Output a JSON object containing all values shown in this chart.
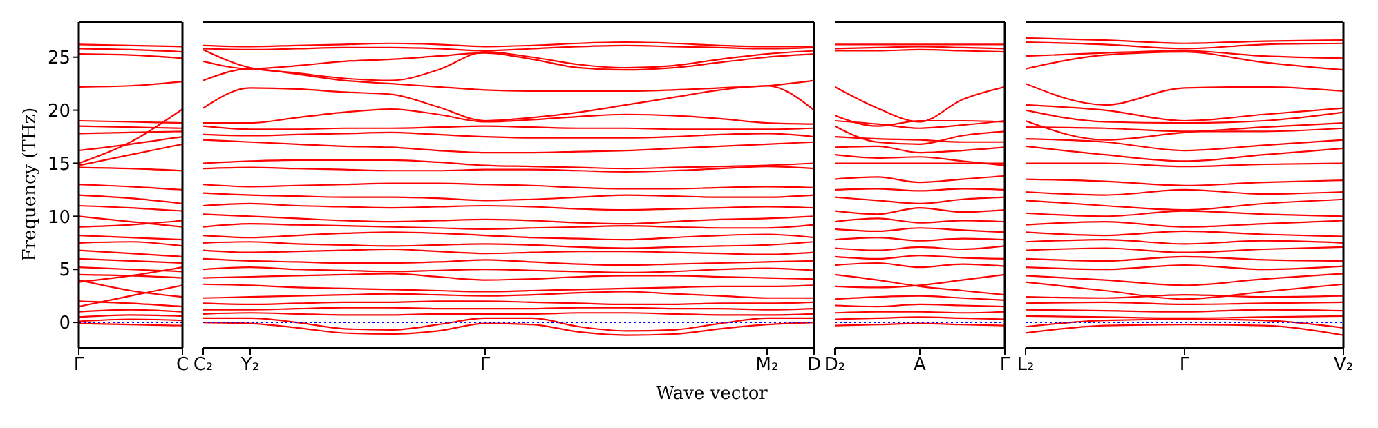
{
  "chart_data": [
    {
      "type": "line",
      "ylabel": "Frequency (THz)",
      "categories": [
        "Γ",
        null,
        "C"
      ],
      "ylim": [
        -2.4,
        28.3
      ],
      "yticks": [
        0,
        5,
        10,
        15,
        20,
        25
      ],
      "marker": "none",
      "line_style": "solid",
      "ref_lines": [
        {
          "axis": "y",
          "value": 0,
          "color": "#0000ff",
          "line_style": "dotted"
        }
      ],
      "series": [
        {
          "color": "#ff0000",
          "values": [
            26.2,
            26.1,
            26.0
          ]
        },
        {
          "color": "#ff0000",
          "values": [
            25.8,
            25.7,
            25.5
          ]
        },
        {
          "color": "#ff0000",
          "values": [
            25.3,
            25.2,
            24.9
          ]
        },
        {
          "color": "#ff0000",
          "values": [
            22.2,
            22.3,
            22.7
          ]
        },
        {
          "color": "#ff0000",
          "values": [
            19.0,
            18.9,
            18.8
          ]
        },
        {
          "color": "#ff0000",
          "values": [
            18.5,
            18.4,
            18.3
          ]
        },
        {
          "color": "#ff0000",
          "values": [
            17.8,
            17.9,
            18.0
          ]
        },
        {
          "color": "#ff0000",
          "values": [
            16.2,
            16.8,
            17.5
          ]
        },
        {
          "color": "#ff0000",
          "values": [
            15.0,
            17.0,
            20.1
          ]
        },
        {
          "color": "#ff0000",
          "values": [
            14.8,
            15.8,
            16.8
          ]
        },
        {
          "color": "#ff0000",
          "values": [
            14.6,
            14.5,
            14.3
          ]
        },
        {
          "color": "#ff0000",
          "values": [
            13.0,
            12.8,
            12.5
          ]
        },
        {
          "color": "#ff0000",
          "values": [
            12.0,
            11.7,
            11.2
          ]
        },
        {
          "color": "#ff0000",
          "values": [
            11.0,
            10.8,
            10.5
          ]
        },
        {
          "color": "#ff0000",
          "values": [
            10.0,
            9.5,
            9.0
          ]
        },
        {
          "color": "#ff0000",
          "values": [
            9.0,
            9.2,
            9.6
          ]
        },
        {
          "color": "#ff0000",
          "values": [
            8.2,
            8.0,
            7.8
          ]
        },
        {
          "color": "#ff0000",
          "values": [
            7.5,
            7.6,
            7.2
          ]
        },
        {
          "color": "#ff0000",
          "values": [
            6.8,
            6.5,
            6.2
          ]
        },
        {
          "color": "#ff0000",
          "values": [
            6.0,
            5.8,
            5.6
          ]
        },
        {
          "color": "#ff0000",
          "values": [
            5.2,
            5.0,
            4.8
          ]
        },
        {
          "color": "#ff0000",
          "values": [
            4.5,
            4.4,
            4.2
          ]
        },
        {
          "color": "#ff0000",
          "values": [
            4.0,
            3.0,
            2.4
          ]
        },
        {
          "color": "#ff0000",
          "values": [
            3.8,
            4.4,
            5.2
          ]
        },
        {
          "color": "#ff0000",
          "values": [
            2.0,
            1.8,
            1.5
          ]
        },
        {
          "color": "#ff0000",
          "values": [
            1.5,
            2.5,
            3.5
          ]
        },
        {
          "color": "#ff0000",
          "values": [
            1.0,
            1.2,
            1.0
          ]
        },
        {
          "color": "#ff0000",
          "values": [
            0.5,
            0.7,
            0.6
          ]
        },
        {
          "color": "#ff0000",
          "values": [
            0.1,
            0.3,
            0.2
          ]
        },
        {
          "color": "#ff0000",
          "values": [
            -0.1,
            -0.2,
            -0.3
          ]
        }
      ]
    },
    {
      "type": "line",
      "xlabel": "Wave vector",
      "tick_labels": "x",
      "categories": [
        "C₂",
        "Y₂",
        null,
        null,
        null,
        null,
        "Γ",
        null,
        null,
        null,
        null,
        null,
        "M₂",
        "D"
      ],
      "ylim": [
        -2.4,
        28.3
      ],
      "yticks": [
        0,
        5,
        10,
        15,
        20,
        25
      ],
      "marker": "none",
      "line_style": "solid",
      "ref_lines": [
        {
          "axis": "y",
          "value": 0,
          "color": "#0000ff",
          "line_style": "dotted"
        }
      ],
      "series": [
        {
          "color": "#ff0000",
          "values": [
            26.1,
            26.0,
            26.1,
            26.2,
            26.3,
            26.2,
            26.0,
            26.1,
            26.3,
            26.4,
            26.3,
            26.1,
            26.0,
            26.0
          ]
        },
        {
          "color": "#ff0000",
          "values": [
            25.8,
            25.7,
            25.8,
            25.9,
            25.9,
            25.8,
            25.6,
            25.8,
            26.0,
            26.1,
            26.0,
            25.9,
            25.8,
            25.9
          ]
        },
        {
          "color": "#ff0000",
          "values": [
            25.7,
            24.0,
            23.5,
            23.0,
            22.8,
            23.8,
            25.5,
            25.0,
            24.3,
            24.0,
            24.2,
            24.8,
            25.3,
            25.6
          ]
        },
        {
          "color": "#ff0000",
          "values": [
            24.6,
            23.9,
            24.2,
            24.6,
            24.8,
            25.1,
            25.4,
            24.8,
            24.0,
            23.8,
            24.0,
            24.5,
            25.0,
            25.3
          ]
        },
        {
          "color": "#ff0000",
          "values": [
            22.8,
            23.9,
            23.4,
            22.8,
            22.5,
            22.2,
            21.9,
            21.8,
            21.8,
            21.8,
            21.9,
            22.1,
            22.3,
            22.8
          ]
        },
        {
          "color": "#ff0000",
          "values": [
            20.2,
            22.1,
            22.0,
            21.7,
            21.5,
            20.3,
            19.0,
            19.3,
            19.8,
            20.5,
            21.2,
            21.9,
            22.3,
            20.0
          ]
        },
        {
          "color": "#ff0000",
          "values": [
            18.8,
            18.8,
            19.3,
            19.8,
            20.1,
            19.6,
            18.9,
            19.1,
            19.4,
            19.6,
            19.5,
            19.2,
            18.8,
            18.7
          ]
        },
        {
          "color": "#ff0000",
          "values": [
            18.5,
            18.2,
            18.2,
            18.3,
            18.3,
            18.4,
            18.5,
            18.4,
            18.3,
            18.3,
            18.2,
            18.2,
            18.2,
            18.3
          ]
        },
        {
          "color": "#ff0000",
          "values": [
            17.7,
            17.6,
            17.7,
            17.8,
            17.9,
            17.7,
            17.5,
            17.4,
            17.4,
            17.4,
            17.5,
            17.7,
            17.8,
            17.5
          ]
        },
        {
          "color": "#ff0000",
          "values": [
            17.2,
            17.0,
            16.8,
            16.6,
            16.5,
            16.2,
            16.0,
            16.0,
            16.1,
            16.2,
            16.4,
            16.6,
            16.8,
            17.0
          ]
        },
        {
          "color": "#ff0000",
          "values": [
            15.0,
            15.2,
            15.3,
            15.3,
            15.3,
            15.1,
            14.8,
            14.7,
            14.6,
            14.5,
            14.6,
            14.7,
            14.8,
            15.0
          ]
        },
        {
          "color": "#ff0000",
          "values": [
            14.5,
            14.6,
            14.5,
            14.4,
            14.3,
            14.3,
            14.4,
            14.4,
            14.3,
            14.2,
            14.3,
            14.5,
            14.7,
            14.5
          ]
        },
        {
          "color": "#ff0000",
          "values": [
            13.0,
            12.8,
            12.9,
            13.0,
            13.1,
            13.1,
            13.0,
            12.9,
            12.7,
            12.6,
            12.6,
            12.7,
            12.8,
            12.7
          ]
        },
        {
          "color": "#ff0000",
          "values": [
            12.2,
            12.0,
            11.9,
            11.8,
            11.8,
            11.7,
            11.5,
            11.6,
            11.8,
            12.0,
            11.9,
            11.8,
            11.8,
            12.0
          ]
        },
        {
          "color": "#ff0000",
          "values": [
            11.0,
            11.2,
            11.0,
            10.9,
            10.8,
            10.9,
            11.0,
            10.9,
            10.7,
            10.6,
            10.7,
            10.8,
            10.9,
            10.8
          ]
        },
        {
          "color": "#ff0000",
          "values": [
            10.2,
            10.0,
            9.8,
            9.6,
            9.5,
            9.6,
            9.7,
            9.6,
            9.4,
            9.3,
            9.5,
            9.7,
            9.8,
            10.0
          ]
        },
        {
          "color": "#ff0000",
          "values": [
            9.0,
            9.3,
            9.2,
            9.1,
            9.0,
            8.9,
            8.8,
            8.9,
            9.0,
            9.1,
            9.0,
            8.9,
            8.9,
            9.2
          ]
        },
        {
          "color": "#ff0000",
          "values": [
            8.2,
            8.0,
            8.2,
            8.4,
            8.5,
            8.4,
            8.2,
            8.0,
            7.9,
            7.8,
            8.0,
            8.2,
            8.3,
            8.0
          ]
        },
        {
          "color": "#ff0000",
          "values": [
            7.5,
            7.6,
            7.4,
            7.3,
            7.2,
            7.3,
            7.4,
            7.3,
            7.1,
            7.0,
            7.1,
            7.2,
            7.3,
            7.6
          ]
        },
        {
          "color": "#ff0000",
          "values": [
            6.8,
            6.6,
            6.7,
            6.8,
            6.9,
            6.7,
            6.5,
            6.6,
            6.7,
            6.7,
            6.6,
            6.5,
            6.4,
            6.6
          ]
        },
        {
          "color": "#ff0000",
          "values": [
            6.0,
            5.8,
            5.7,
            5.6,
            5.6,
            5.7,
            5.9,
            5.7,
            5.5,
            5.4,
            5.5,
            5.6,
            5.7,
            5.8
          ]
        },
        {
          "color": "#ff0000",
          "values": [
            5.0,
            5.2,
            5.0,
            4.9,
            4.8,
            4.9,
            5.0,
            4.9,
            4.8,
            4.7,
            4.8,
            5.0,
            5.1,
            4.9
          ]
        },
        {
          "color": "#ff0000",
          "values": [
            4.2,
            4.3,
            4.4,
            4.5,
            4.6,
            4.3,
            4.0,
            4.1,
            4.3,
            4.4,
            4.4,
            4.3,
            4.2,
            4.1
          ]
        },
        {
          "color": "#ff0000",
          "values": [
            3.6,
            3.5,
            3.3,
            3.2,
            3.1,
            3.0,
            2.9,
            3.0,
            3.1,
            3.2,
            3.3,
            3.4,
            3.4,
            3.5
          ]
        },
        {
          "color": "#ff0000",
          "values": [
            2.3,
            2.4,
            2.5,
            2.6,
            2.7,
            2.6,
            2.5,
            2.6,
            2.8,
            2.9,
            2.7,
            2.5,
            2.3,
            2.3
          ]
        },
        {
          "color": "#ff0000",
          "values": [
            1.8,
            1.7,
            1.8,
            1.9,
            1.9,
            2.0,
            2.0,
            1.9,
            1.8,
            1.7,
            1.7,
            1.8,
            1.8,
            1.9
          ]
        },
        {
          "color": "#ff0000",
          "values": [
            1.2,
            1.2,
            1.3,
            1.4,
            1.4,
            1.3,
            1.3,
            1.3,
            1.4,
            1.4,
            1.3,
            1.3,
            1.2,
            1.3
          ]
        },
        {
          "color": "#ff0000",
          "values": [
            0.8,
            0.9,
            0.8,
            0.7,
            0.7,
            0.8,
            0.8,
            0.8,
            0.9,
            0.9,
            0.8,
            0.7,
            0.7,
            0.8
          ]
        },
        {
          "color": "#ff0000",
          "values": [
            0.4,
            0.4,
            0.0,
            -0.6,
            -0.7,
            -0.2,
            0.4,
            0.4,
            -0.4,
            -0.8,
            -0.7,
            -0.1,
            0.4,
            0.4
          ]
        },
        {
          "color": "#ff0000",
          "values": [
            0.0,
            -0.1,
            -0.5,
            -1.0,
            -1.1,
            -0.8,
            -0.1,
            -0.2,
            -0.9,
            -1.2,
            -1.1,
            -0.6,
            -0.2,
            0.0
          ]
        }
      ]
    },
    {
      "type": "line",
      "tick_labels": "x",
      "categories": [
        "D₂",
        null,
        "A",
        null,
        "Γ"
      ],
      "ylim": [
        -2.4,
        28.3
      ],
      "yticks": [
        0,
        5,
        10,
        15,
        20,
        25
      ],
      "marker": "none",
      "line_style": "solid",
      "ref_lines": [
        {
          "axis": "y",
          "value": 0,
          "color": "#0000ff",
          "line_style": "dotted"
        }
      ],
      "series": [
        {
          "color": "#ff0000",
          "values": [
            26.2,
            26.2,
            26.2,
            26.2,
            26.2
          ]
        },
        {
          "color": "#ff0000",
          "values": [
            25.8,
            25.9,
            26.0,
            25.9,
            25.8
          ]
        },
        {
          "color": "#ff0000",
          "values": [
            25.6,
            25.6,
            25.7,
            25.6,
            25.5
          ]
        },
        {
          "color": "#ff0000",
          "values": [
            22.2,
            20.2,
            18.9,
            21.0,
            22.2
          ]
        },
        {
          "color": "#ff0000",
          "values": [
            19.5,
            18.5,
            19.0,
            19.0,
            18.9
          ]
        },
        {
          "color": "#ff0000",
          "values": [
            19.0,
            18.7,
            18.3,
            18.6,
            19.0
          ]
        },
        {
          "color": "#ff0000",
          "values": [
            18.5,
            17.0,
            16.8,
            17.6,
            18.0
          ]
        },
        {
          "color": "#ff0000",
          "values": [
            17.5,
            17.3,
            17.2,
            17.0,
            17.0
          ]
        },
        {
          "color": "#ff0000",
          "values": [
            16.5,
            16.6,
            16.0,
            16.2,
            16.5
          ]
        },
        {
          "color": "#ff0000",
          "values": [
            15.8,
            15.5,
            15.6,
            15.2,
            14.8
          ]
        },
        {
          "color": "#ff0000",
          "values": [
            15.0,
            15.0,
            15.0,
            15.0,
            15.0
          ]
        },
        {
          "color": "#ff0000",
          "values": [
            13.5,
            13.7,
            13.2,
            13.5,
            13.8
          ]
        },
        {
          "color": "#ff0000",
          "values": [
            12.5,
            12.6,
            12.4,
            12.6,
            12.5
          ]
        },
        {
          "color": "#ff0000",
          "values": [
            11.8,
            11.5,
            11.2,
            11.6,
            11.8
          ]
        },
        {
          "color": "#ff0000",
          "values": [
            10.5,
            10.2,
            10.8,
            10.4,
            10.6
          ]
        },
        {
          "color": "#ff0000",
          "values": [
            9.5,
            9.8,
            9.4,
            9.6,
            9.5
          ]
        },
        {
          "color": "#ff0000",
          "values": [
            8.8,
            8.6,
            8.9,
            8.7,
            8.5
          ]
        },
        {
          "color": "#ff0000",
          "values": [
            7.8,
            8.0,
            7.7,
            7.9,
            7.8
          ]
        },
        {
          "color": "#ff0000",
          "values": [
            7.0,
            6.8,
            7.1,
            6.9,
            7.2
          ]
        },
        {
          "color": "#ff0000",
          "values": [
            6.2,
            6.0,
            6.3,
            6.1,
            6.0
          ]
        },
        {
          "color": "#ff0000",
          "values": [
            5.4,
            5.6,
            5.2,
            5.5,
            5.3
          ]
        },
        {
          "color": "#ff0000",
          "values": [
            4.5,
            4.0,
            3.4,
            3.0,
            2.6
          ]
        },
        {
          "color": "#ff0000",
          "values": [
            3.4,
            3.3,
            3.5,
            4.0,
            4.5
          ]
        },
        {
          "color": "#ff0000",
          "values": [
            2.2,
            2.4,
            2.5,
            2.3,
            2.1
          ]
        },
        {
          "color": "#ff0000",
          "values": [
            1.6,
            1.5,
            1.7,
            1.6,
            1.5
          ]
        },
        {
          "color": "#ff0000",
          "values": [
            0.9,
            1.0,
            1.0,
            0.9,
            1.0
          ]
        },
        {
          "color": "#ff0000",
          "values": [
            0.3,
            0.4,
            0.5,
            0.4,
            0.3
          ]
        },
        {
          "color": "#ff0000",
          "values": [
            -0.3,
            -0.2,
            -0.1,
            -0.2,
            -0.3
          ]
        }
      ]
    },
    {
      "type": "line",
      "tick_labels": "x",
      "categories": [
        "L₂",
        null,
        "Γ",
        null,
        "V₂"
      ],
      "ylim": [
        -2.4,
        28.3
      ],
      "yticks": [
        0,
        5,
        10,
        15,
        20,
        25
      ],
      "marker": "none",
      "line_style": "solid",
      "ref_lines": [
        {
          "axis": "y",
          "value": 0,
          "color": "#0000ff",
          "line_style": "dotted"
        }
      ],
      "series": [
        {
          "color": "#ff0000",
          "values": [
            26.8,
            26.6,
            26.3,
            26.5,
            26.6
          ]
        },
        {
          "color": "#ff0000",
          "values": [
            26.4,
            26.2,
            25.8,
            26.2,
            26.3
          ]
        },
        {
          "color": "#ff0000",
          "values": [
            25.1,
            25.4,
            25.6,
            25.1,
            24.9
          ]
        },
        {
          "color": "#ff0000",
          "values": [
            23.9,
            25.2,
            25.5,
            24.5,
            23.8
          ]
        },
        {
          "color": "#ff0000",
          "values": [
            22.5,
            20.5,
            22.1,
            22.2,
            21.8
          ]
        },
        {
          "color": "#ff0000",
          "values": [
            20.5,
            20.0,
            19.0,
            19.6,
            20.2
          ]
        },
        {
          "color": "#ff0000",
          "values": [
            20.0,
            18.9,
            18.8,
            19.0,
            19.8
          ]
        },
        {
          "color": "#ff0000",
          "values": [
            19.0,
            17.2,
            17.9,
            18.4,
            18.8
          ]
        },
        {
          "color": "#ff0000",
          "values": [
            18.4,
            18.3,
            18.0,
            18.0,
            18.3
          ]
        },
        {
          "color": "#ff0000",
          "values": [
            17.3,
            17.0,
            16.2,
            16.7,
            17.2
          ]
        },
        {
          "color": "#ff0000",
          "values": [
            16.6,
            15.8,
            15.2,
            15.8,
            16.4
          ]
        },
        {
          "color": "#ff0000",
          "values": [
            15.0,
            15.0,
            14.7,
            14.9,
            15.0
          ]
        },
        {
          "color": "#ff0000",
          "values": [
            13.5,
            13.3,
            12.9,
            13.2,
            13.4
          ]
        },
        {
          "color": "#ff0000",
          "values": [
            12.3,
            12.0,
            12.5,
            12.1,
            12.3
          ]
        },
        {
          "color": "#ff0000",
          "values": [
            11.5,
            11.0,
            10.6,
            11.2,
            11.6
          ]
        },
        {
          "color": "#ff0000",
          "values": [
            10.3,
            10.0,
            10.5,
            10.2,
            10.0
          ]
        },
        {
          "color": "#ff0000",
          "values": [
            9.2,
            9.5,
            9.0,
            9.3,
            9.6
          ]
        },
        {
          "color": "#ff0000",
          "values": [
            8.5,
            8.2,
            8.6,
            8.3,
            8.1
          ]
        },
        {
          "color": "#ff0000",
          "values": [
            7.6,
            7.8,
            7.4,
            7.7,
            7.5
          ]
        },
        {
          "color": "#ff0000",
          "values": [
            6.8,
            7.0,
            6.6,
            6.9,
            7.1
          ]
        },
        {
          "color": "#ff0000",
          "values": [
            6.0,
            5.8,
            6.2,
            5.9,
            5.8
          ]
        },
        {
          "color": "#ff0000",
          "values": [
            5.2,
            5.0,
            5.4,
            5.0,
            5.3
          ]
        },
        {
          "color": "#ff0000",
          "values": [
            4.4,
            4.0,
            3.5,
            4.1,
            4.6
          ]
        },
        {
          "color": "#ff0000",
          "values": [
            3.8,
            3.0,
            2.2,
            2.9,
            3.6
          ]
        },
        {
          "color": "#ff0000",
          "values": [
            2.4,
            2.3,
            2.6,
            2.4,
            2.5
          ]
        },
        {
          "color": "#ff0000",
          "values": [
            1.8,
            1.9,
            1.7,
            1.8,
            1.9
          ]
        },
        {
          "color": "#ff0000",
          "values": [
            1.2,
            1.1,
            1.0,
            1.2,
            1.1
          ]
        },
        {
          "color": "#ff0000",
          "values": [
            0.6,
            0.5,
            0.4,
            0.5,
            0.6
          ]
        },
        {
          "color": "#ff0000",
          "values": [
            -0.4,
            0.2,
            0.3,
            0.2,
            -0.5
          ]
        },
        {
          "color": "#ff0000",
          "values": [
            -1.0,
            -0.3,
            -0.2,
            -0.3,
            -1.2
          ]
        }
      ]
    }
  ]
}
